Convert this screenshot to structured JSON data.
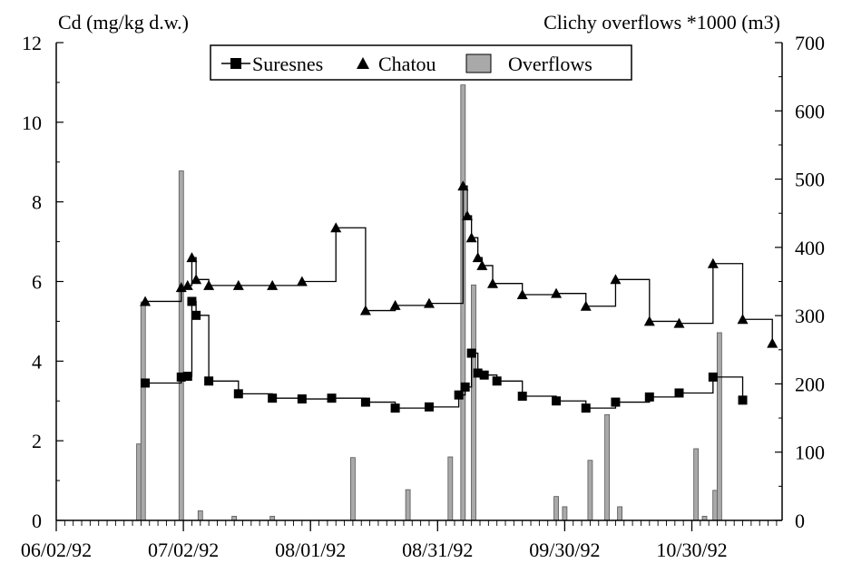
{
  "chart_data": {
    "type": "line",
    "left_axis_label": "Cd (mg/kg d.w.)",
    "right_axis_label": "Clichy overflows *1000 (m3)",
    "x_tick_labels": [
      "06/02/92",
      "07/02/92",
      "08/01/92",
      "08/31/92",
      "09/30/92",
      "10/30/92"
    ],
    "x_range_days": [
      0,
      180
    ],
    "x_start": "06/02/92",
    "y_left_range": [
      0,
      12
    ],
    "y_left_ticks": [
      "0",
      "2",
      "4",
      "6",
      "8",
      "10",
      "12"
    ],
    "y_right_range": [
      0,
      700
    ],
    "y_right_ticks": [
      "0",
      "100",
      "200",
      "300",
      "400",
      "500",
      "600",
      "700"
    ],
    "legend": {
      "position": "top-center",
      "entries": [
        "Suresnes",
        "Chatou",
        "Overflows"
      ]
    },
    "grid": false,
    "series": [
      {
        "name": "Suresnes",
        "marker": "square",
        "step": true,
        "points": [
          [
            21,
            3.45
          ],
          [
            29.5,
            3.6
          ],
          [
            31,
            3.62
          ],
          [
            32,
            5.5
          ],
          [
            33,
            5.15
          ],
          [
            36,
            3.5
          ],
          [
            43,
            3.18
          ],
          [
            51,
            3.07
          ],
          [
            58,
            3.05
          ],
          [
            65,
            3.07
          ],
          [
            73,
            2.97
          ],
          [
            80,
            2.82
          ],
          [
            88,
            2.85
          ],
          [
            95,
            3.15
          ],
          [
            96.5,
            3.35
          ],
          [
            98,
            4.2
          ],
          [
            99.5,
            3.7
          ],
          [
            101,
            3.65
          ],
          [
            104,
            3.5
          ],
          [
            110,
            3.12
          ],
          [
            118,
            3.0
          ],
          [
            125,
            2.82
          ],
          [
            132,
            2.97
          ],
          [
            140,
            3.1
          ],
          [
            147,
            3.2
          ],
          [
            155,
            3.6
          ],
          [
            162,
            3.02
          ]
        ]
      },
      {
        "name": "Chatou",
        "marker": "triangle",
        "step": true,
        "points": [
          [
            21,
            5.5
          ],
          [
            29.5,
            5.85
          ],
          [
            31,
            5.9
          ],
          [
            32,
            6.6
          ],
          [
            33,
            6.05
          ],
          [
            36,
            5.9
          ],
          [
            43,
            5.9
          ],
          [
            51,
            5.9
          ],
          [
            58,
            6.0
          ],
          [
            66,
            7.35
          ],
          [
            73,
            5.27
          ],
          [
            80,
            5.4
          ],
          [
            88,
            5.45
          ],
          [
            96,
            8.4
          ],
          [
            97,
            7.65
          ],
          [
            98,
            7.1
          ],
          [
            99.5,
            6.6
          ],
          [
            100.5,
            6.4
          ],
          [
            103,
            5.95
          ],
          [
            110,
            5.67
          ],
          [
            118,
            5.7
          ],
          [
            125,
            5.38
          ],
          [
            132,
            6.05
          ],
          [
            140,
            5.0
          ],
          [
            147,
            4.95
          ],
          [
            155,
            6.45
          ],
          [
            162,
            5.05
          ],
          [
            169,
            4.45
          ]
        ]
      },
      {
        "name": "Overflows",
        "type": "bar",
        "axis": "right",
        "units": "*1000 m3",
        "points": [
          [
            19.5,
            112
          ],
          [
            20.5,
            320
          ],
          [
            29.5,
            512
          ],
          [
            34,
            14
          ],
          [
            42,
            6
          ],
          [
            51,
            6
          ],
          [
            70,
            92
          ],
          [
            83,
            45
          ],
          [
            93,
            93
          ],
          [
            96,
            638
          ],
          [
            98.5,
            345
          ],
          [
            118,
            35
          ],
          [
            120,
            20
          ],
          [
            126,
            88
          ],
          [
            130,
            155
          ],
          [
            133,
            20
          ],
          [
            151,
            105
          ],
          [
            153,
            6
          ],
          [
            155.5,
            44
          ],
          [
            156.5,
            275
          ]
        ]
      }
    ]
  }
}
